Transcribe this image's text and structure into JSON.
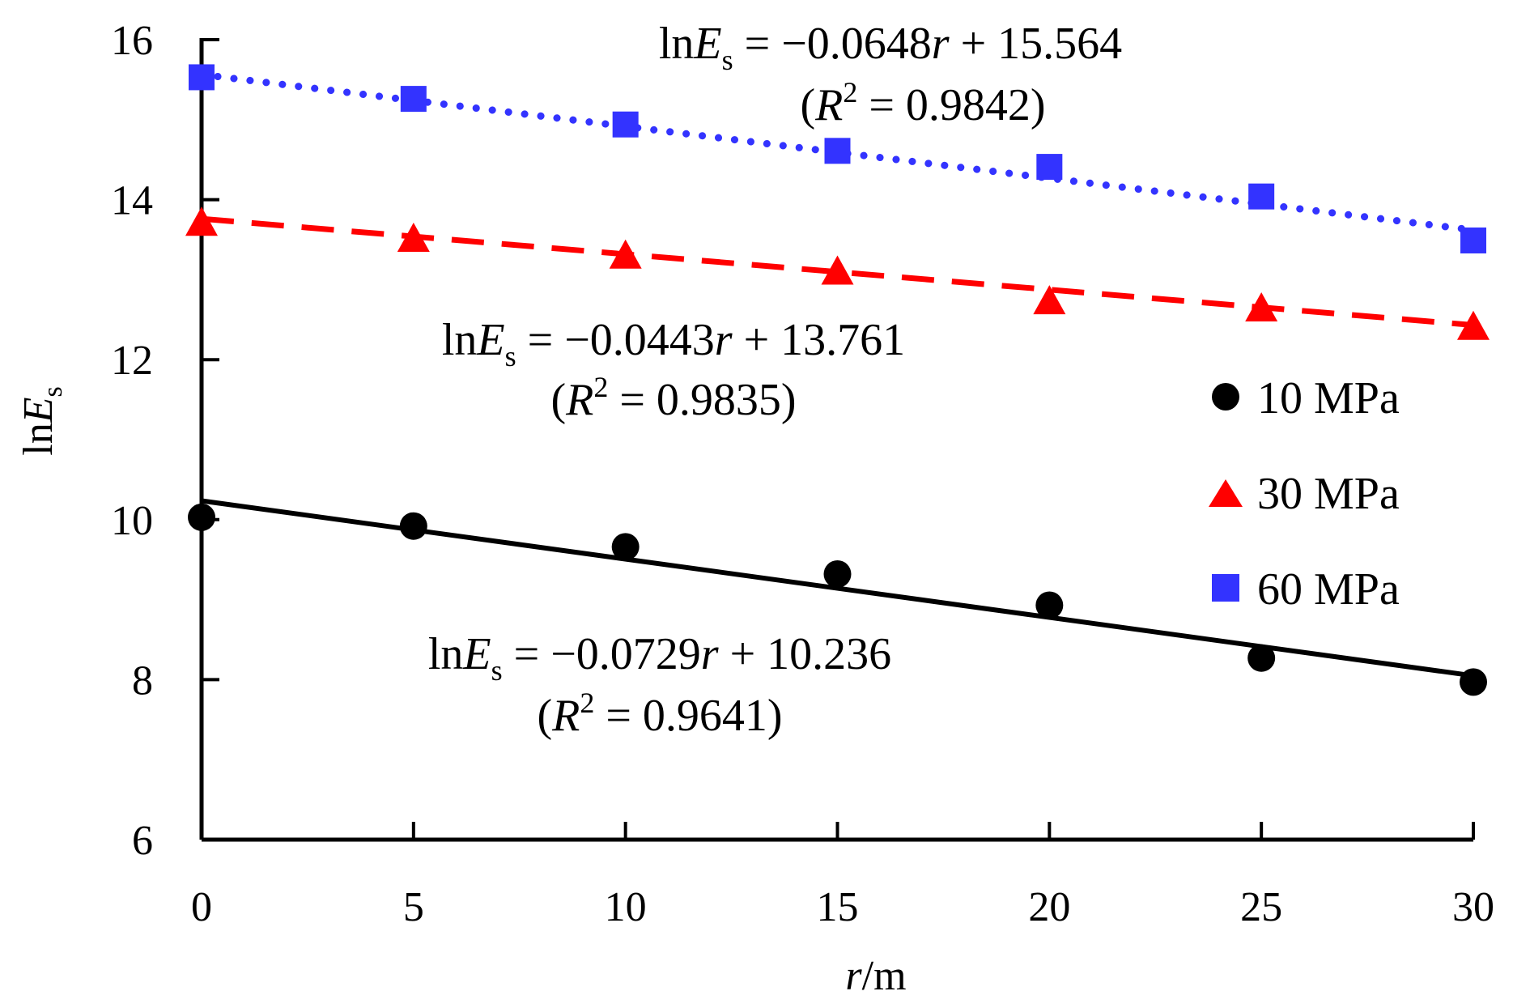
{
  "chart_data": {
    "type": "scatter",
    "xlabel_italic": "r",
    "xlabel_unit": "/m",
    "ylabel_prefix": "ln",
    "ylabel_var": "E",
    "ylabel_sub": "s",
    "xlim": [
      0,
      30
    ],
    "ylim": [
      6,
      16
    ],
    "x_ticks": [
      "0",
      "5",
      "10",
      "15",
      "20",
      "25",
      "30"
    ],
    "y_ticks": [
      "6",
      "8",
      "10",
      "12",
      "14",
      "16"
    ],
    "x": [
      0,
      5,
      10,
      15,
      20,
      25,
      30
    ],
    "series": [
      {
        "name": "10 MPa",
        "marker": "circle",
        "color": "#000000",
        "line_style": "solid",
        "values": [
          10.03,
          9.92,
          9.66,
          9.32,
          8.93,
          8.27,
          7.97
        ],
        "fit": {
          "slope": -0.0729,
          "intercept": 10.236
        },
        "eq_prefix": "ln",
        "eq_var": "E",
        "eq_sub": "s",
        "eq_mid": " = −0.0729",
        "eq_r": "r",
        "eq_tail": " + 10.236",
        "r2_open": "(",
        "r2_var": "R",
        "r2_sup": "2",
        "r2_tail": " = 0.9641)"
      },
      {
        "name": "30 MPa",
        "marker": "triangle",
        "color": "#ff0000",
        "line_style": "dashed",
        "values": [
          13.72,
          13.52,
          13.31,
          13.11,
          12.74,
          12.65,
          12.42
        ],
        "fit": {
          "slope": -0.0443,
          "intercept": 13.761
        },
        "eq_prefix": "ln",
        "eq_var": "E",
        "eq_sub": "s",
        "eq_mid": " = −0.0443",
        "eq_r": "r",
        "eq_tail": " + 13.761",
        "r2_open": "(",
        "r2_var": "R",
        "r2_sup": "2",
        "r2_tail": " = 0.9835)"
      },
      {
        "name": "60 MPa",
        "marker": "square",
        "color": "#3333ff",
        "line_style": "dotted",
        "values": [
          15.53,
          15.26,
          14.94,
          14.61,
          14.41,
          14.04,
          13.49
        ],
        "fit": {
          "slope": -0.0648,
          "intercept": 15.564
        },
        "eq_prefix": "ln",
        "eq_var": "E",
        "eq_sub": "s",
        "eq_mid": " = −0.0648",
        "eq_r": "r",
        "eq_tail": " + 15.564",
        "r2_open": "(",
        "r2_var": "R",
        "r2_sup": "2",
        "r2_tail": " = 0.9842)"
      }
    ],
    "legend": [
      "10 MPa",
      "30 MPa",
      "60 MPa"
    ],
    "legend_position": "right",
    "grid": false
  }
}
